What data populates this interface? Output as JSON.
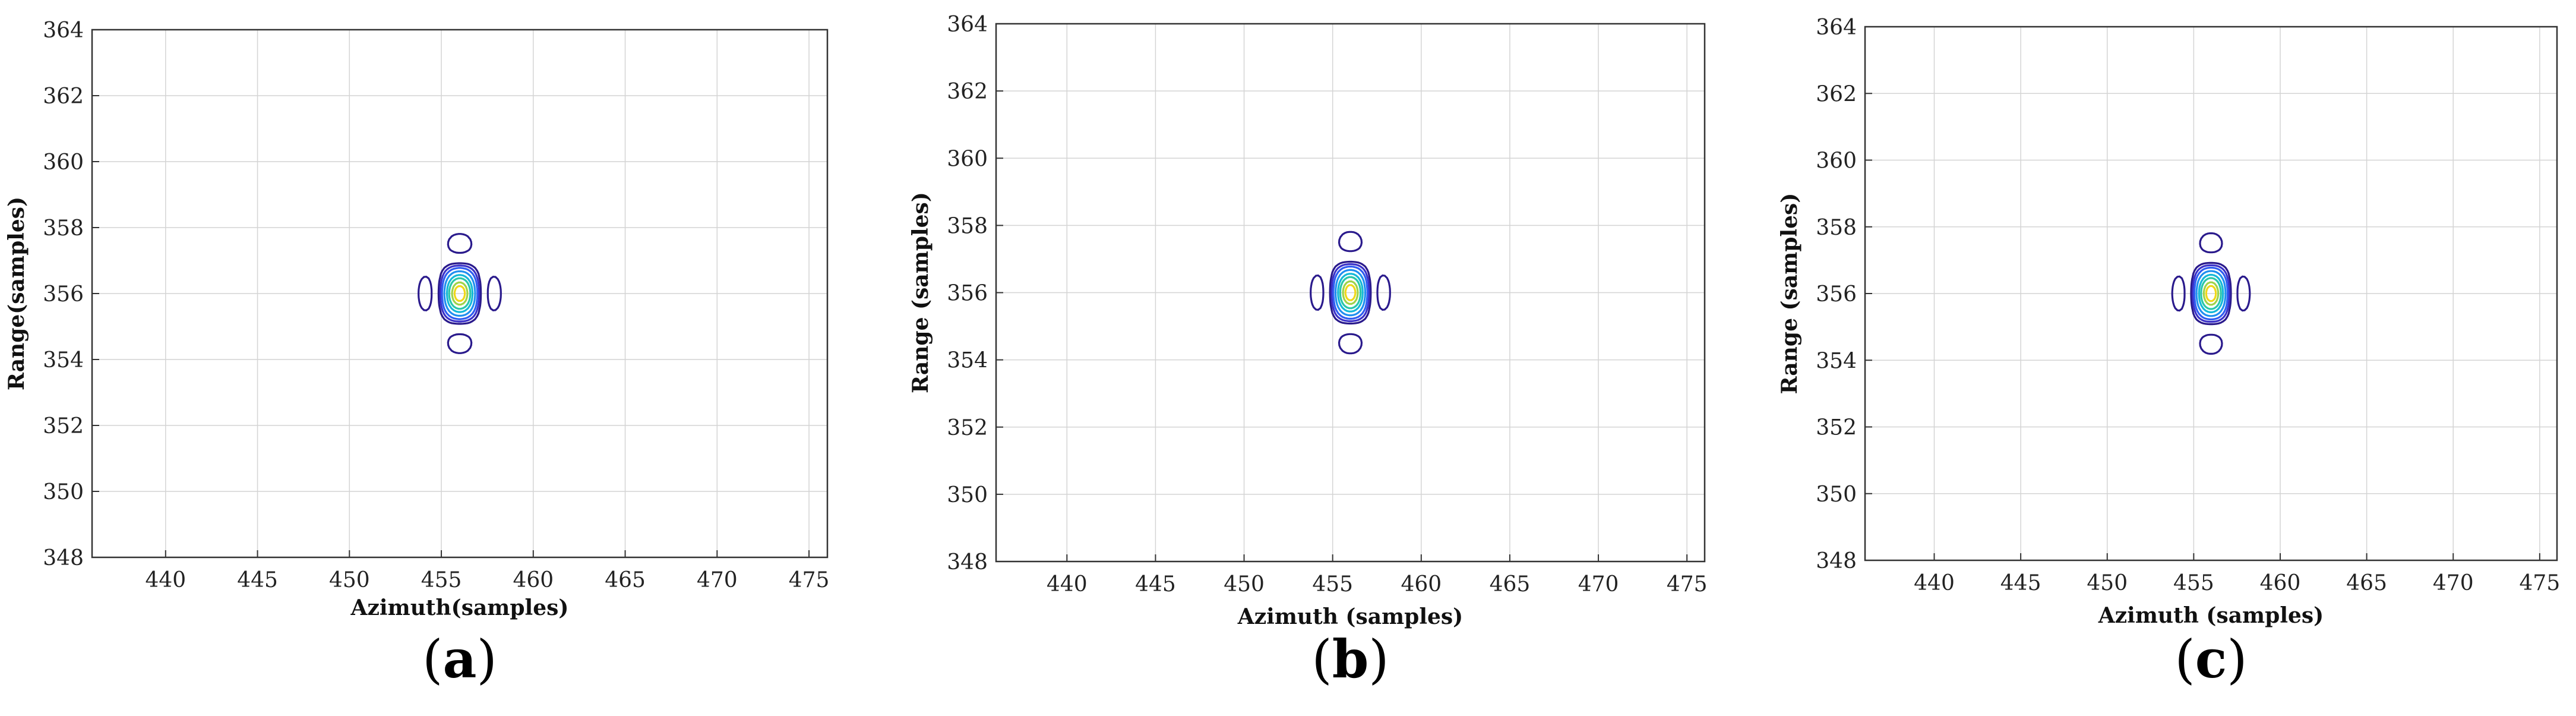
{
  "chart_data": [
    {
      "type": "contour",
      "panel_label": "a",
      "xlabel": "Azimuth(samples)",
      "ylabel": "Range(samples)",
      "xlim": [
        436,
        476
      ],
      "ylim": [
        348,
        364
      ],
      "xticks": [
        440,
        445,
        450,
        455,
        460,
        465,
        470,
        475
      ],
      "yticks": [
        348,
        350,
        352,
        354,
        356,
        358,
        360,
        362,
        364
      ],
      "grid": true,
      "peak": {
        "x": 456,
        "y": 356
      },
      "levels": [
        0.02,
        0.05,
        0.1,
        0.2,
        0.35,
        0.5,
        0.7,
        0.85
      ],
      "level_colors": [
        "#2a1a8c",
        "#3b31c8",
        "#2f5cf0",
        "#1f8ff0",
        "#14b8d8",
        "#2ac7a8",
        "#9ed34a",
        "#f0d818"
      ]
    },
    {
      "type": "contour",
      "panel_label": "b",
      "xlabel": "Azimuth (samples)",
      "ylabel": "Range (samples)",
      "xlim": [
        436,
        476
      ],
      "ylim": [
        348,
        364
      ],
      "xticks": [
        440,
        445,
        450,
        455,
        460,
        465,
        470,
        475
      ],
      "yticks": [
        348,
        350,
        352,
        354,
        356,
        358,
        360,
        362,
        364
      ],
      "grid": true,
      "peak": {
        "x": 456,
        "y": 356
      },
      "levels": [
        0.02,
        0.05,
        0.1,
        0.2,
        0.35,
        0.5,
        0.7,
        0.85
      ],
      "level_colors": [
        "#2a1a8c",
        "#3b31c8",
        "#2f5cf0",
        "#1f8ff0",
        "#14b8d8",
        "#2ac7a8",
        "#9ed34a",
        "#f0d818"
      ]
    },
    {
      "type": "contour",
      "panel_label": "c",
      "xlabel": "Azimuth (samples)",
      "ylabel": "Range (samples)",
      "xlim": [
        436,
        476
      ],
      "ylim": [
        348,
        364
      ],
      "xticks": [
        440,
        445,
        450,
        455,
        460,
        465,
        470,
        475
      ],
      "yticks": [
        348,
        350,
        352,
        354,
        356,
        358,
        360,
        362,
        364
      ],
      "grid": true,
      "peak": {
        "x": 456,
        "y": 356
      },
      "levels": [
        0.02,
        0.05,
        0.1,
        0.2,
        0.35,
        0.5,
        0.7,
        0.85
      ],
      "level_colors": [
        "#2a1a8c",
        "#3b31c8",
        "#2f5cf0",
        "#1f8ff0",
        "#14b8d8",
        "#2ac7a8",
        "#9ed34a",
        "#f0d818"
      ]
    }
  ]
}
